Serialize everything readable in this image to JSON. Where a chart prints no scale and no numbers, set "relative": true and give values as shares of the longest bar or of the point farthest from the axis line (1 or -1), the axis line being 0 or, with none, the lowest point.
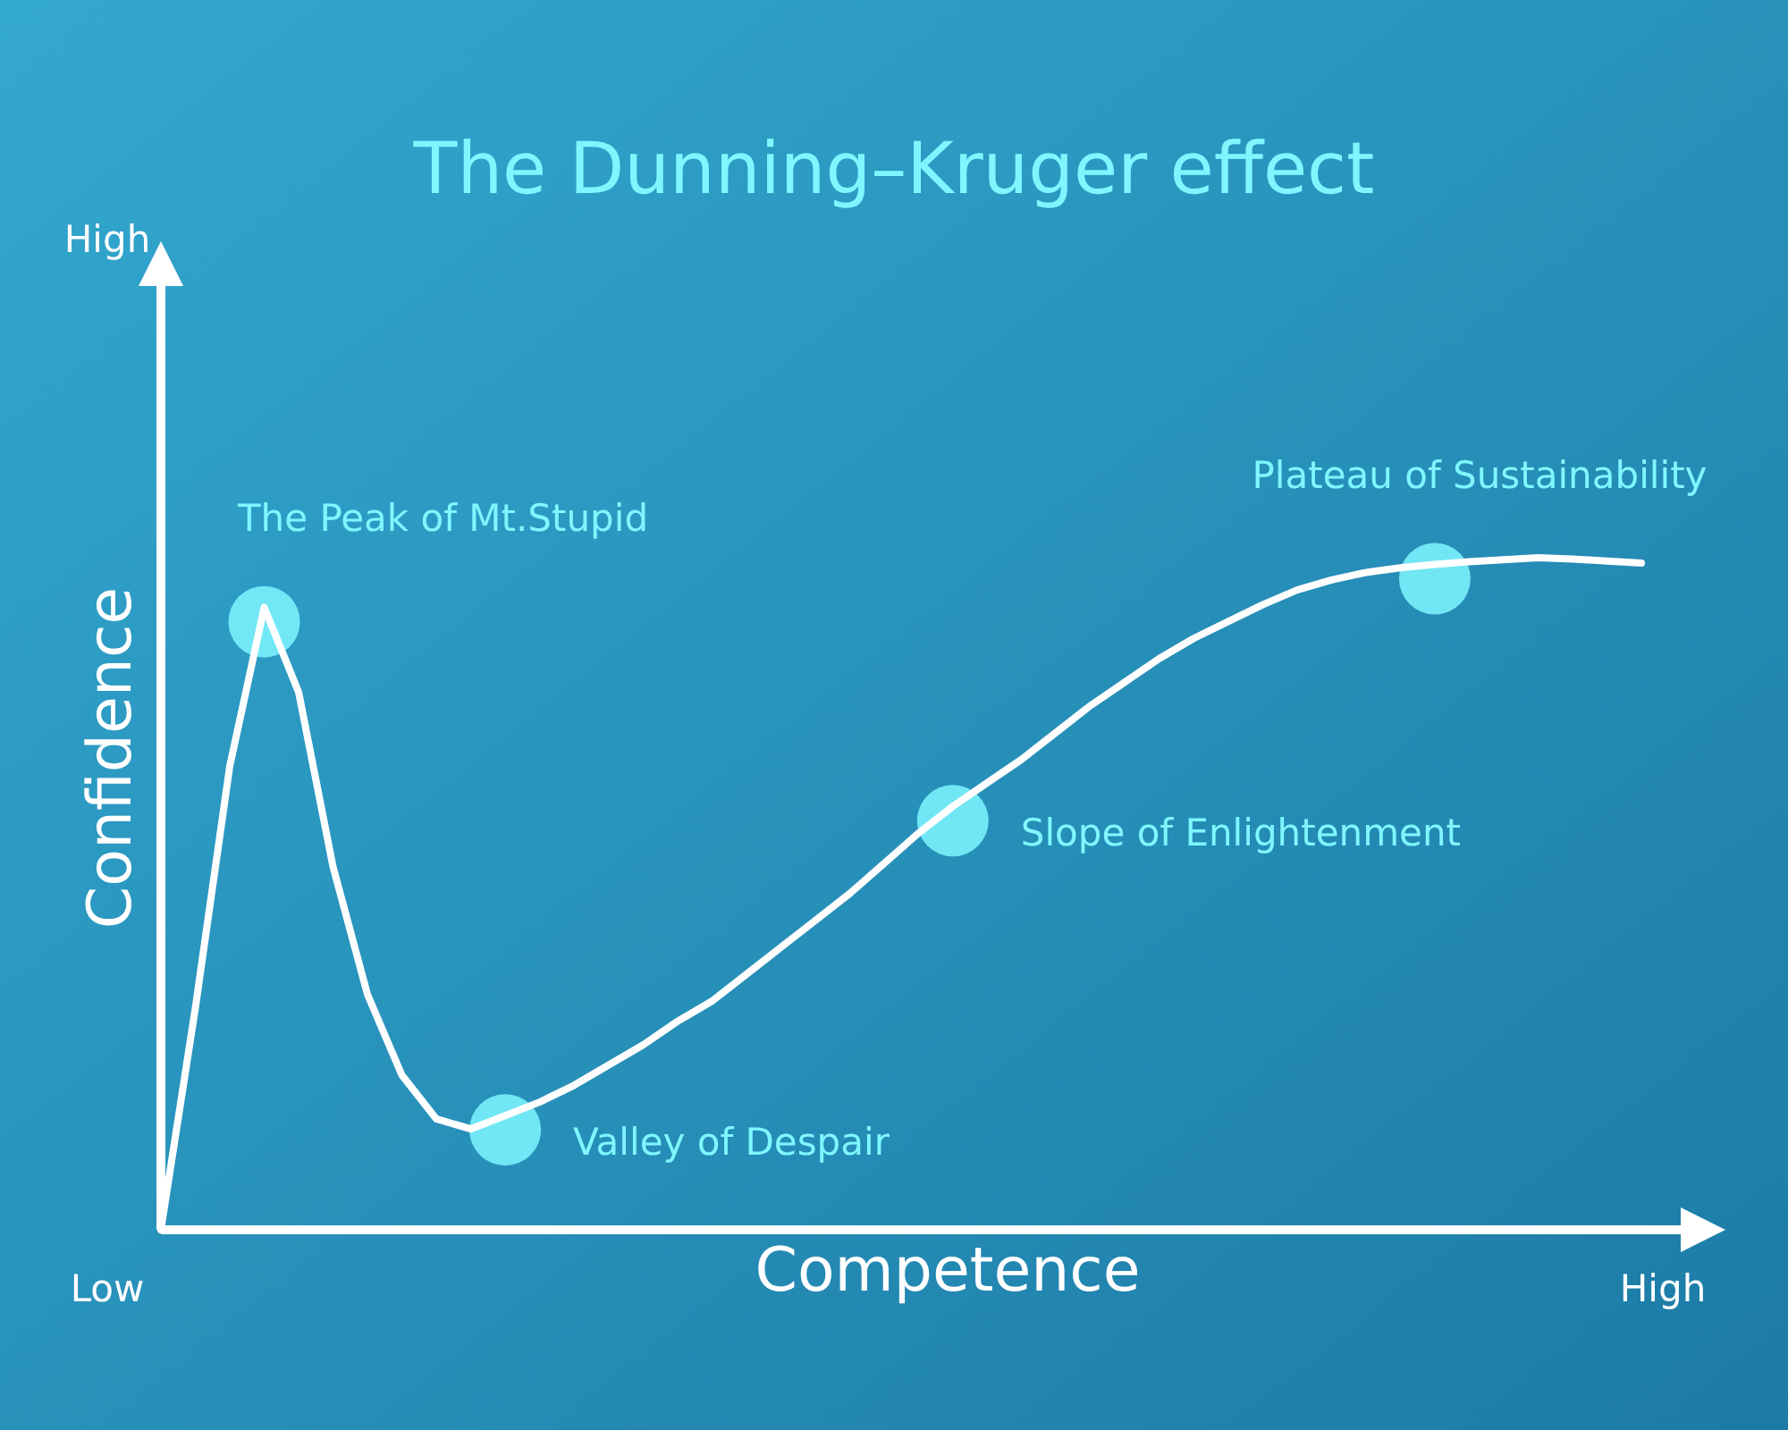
{
  "chart_data": {
    "type": "line",
    "title": "The Dunning–Kruger effect",
    "xlabel": "Competence",
    "ylabel": "Confidence",
    "relative": true,
    "legend": false,
    "categories": [
      null,
      null,
      null,
      null,
      null,
      null,
      null,
      null,
      null,
      null,
      null,
      null,
      null,
      null,
      null,
      null,
      null,
      null,
      null,
      null,
      null,
      null,
      null,
      null,
      null,
      null,
      null,
      null,
      null,
      null,
      null,
      null,
      null,
      null,
      null,
      null,
      null,
      null,
      null,
      null,
      null,
      null,
      null,
      null
    ],
    "series": [
      {
        "color": "#ffffff",
        "marker": "none",
        "values": [
          0,
          0.33,
          0.69,
          0.926,
          0.8,
          0.54,
          0.35,
          0.23,
          0.165,
          0.15,
          0.17,
          0.19,
          0.215,
          0.245,
          0.275,
          0.31,
          0.34,
          0.38,
          0.42,
          0.46,
          0.5,
          0.545,
          0.59,
          0.63,
          0.665,
          0.7,
          0.74,
          0.78,
          0.815,
          0.85,
          0.88,
          0.905,
          0.93,
          0.952,
          0.967,
          0.978,
          0.985,
          0.99,
          0.994,
          0.997,
          1,
          0.998,
          0.995,
          0.992
        ]
      }
    ],
    "annotations": [
      "High",
      "Low",
      "High",
      "The Peak of Mt.Stupid",
      "Valley of Despair",
      "Slope of Enlightenment",
      "Plateau of Sustainability"
    ]
  }
}
